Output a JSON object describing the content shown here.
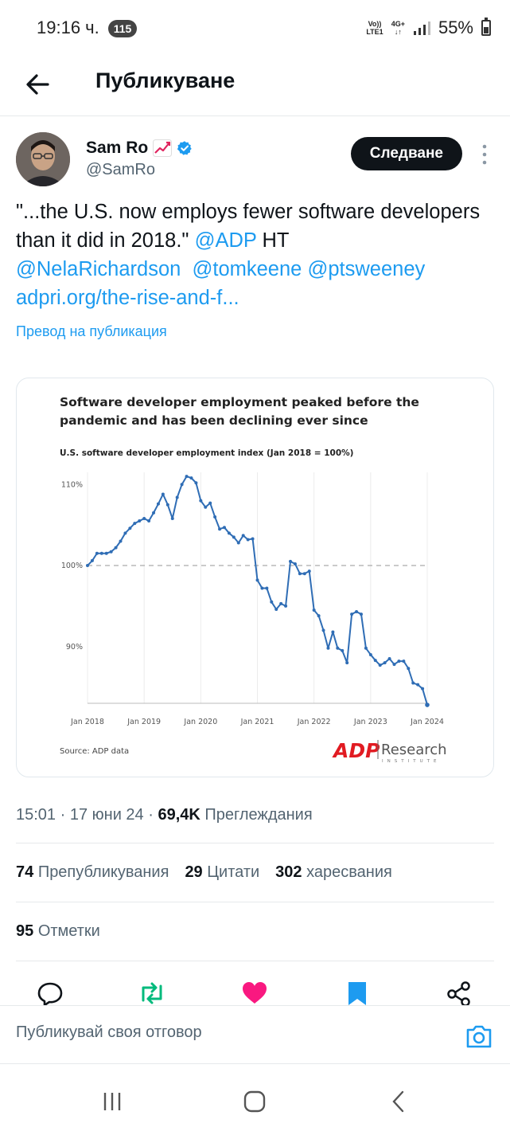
{
  "status_bar": {
    "time": "19:16 ч.",
    "notification_count": "115",
    "volte": "Vo)) LTE1",
    "network": "4G+",
    "battery": "55%"
  },
  "header": {
    "title": "Публикуване",
    "back_icon": "arrow-left-icon"
  },
  "author": {
    "name": "Sam Ro",
    "handle": "@SamRo",
    "emoji": "chart-increasing-icon",
    "verified_color": "#1d9bf0",
    "follow_label": "Следване"
  },
  "tweet": {
    "quote": "\"...the U.S. now employs fewer software developers than it did in 2018.\"",
    "mention_adp": "@ADP",
    "ht": "HT",
    "mention_nela": "@NelaRichardson",
    "mention_keene": "@tomkeene",
    "mention_pts": "@ptsweeney",
    "link": "adpri.org/the-rise-and-f...",
    "translate_label": "Превод на публикация"
  },
  "chart_data": {
    "type": "line",
    "title": "Software developer employment peaked before the pandemic and has been declining ever since",
    "title_line1": "Software developer employment peaked before the",
    "title_line2": "pandemic and has been declining ever since",
    "subtitle": "U.S. software developer employment index (Jan 2018 = 100%)",
    "source": "Source: ADP data",
    "logo_text": "ADP",
    "logo_research": "Research",
    "logo_institute": "INSTITUTE",
    "y_ticks": [
      "110%",
      "100%",
      "90%"
    ],
    "y_tick_values": [
      110,
      100,
      90
    ],
    "x_ticks": [
      "Jan 2018",
      "Jan 2019",
      "Jan 2020",
      "Jan 2021",
      "Jan 2022",
      "Jan 2023",
      "Jan 2024"
    ],
    "ylim": [
      83,
      111.5
    ],
    "reference_line": 100,
    "line_color": "#2f6db5",
    "series": [
      {
        "values": [
          100.0,
          100.6,
          101.5,
          101.5,
          101.5,
          101.7,
          102.2,
          103.0,
          104.0,
          104.6,
          105.2,
          105.5,
          105.8,
          105.5,
          106.5,
          107.6,
          108.8,
          107.5,
          105.8,
          108.4,
          110.0,
          111.0,
          110.8,
          110.2,
          108.0,
          107.2,
          107.7,
          106.0,
          104.5,
          104.7,
          104.0,
          103.5,
          102.8,
          103.7,
          103.2,
          103.3,
          98.2,
          97.2,
          97.2,
          95.5,
          94.6,
          95.3,
          95.0,
          100.5,
          100.2,
          99.0,
          99.0,
          99.3,
          94.5,
          93.8,
          92.0,
          89.8,
          91.8,
          89.8,
          89.5,
          88.0,
          94.0,
          94.3,
          94.0,
          89.8,
          89.0,
          88.3,
          87.7,
          88.0,
          88.5,
          87.8,
          88.2,
          88.2,
          87.3,
          85.5,
          85.3,
          84.8,
          82.8
        ]
      }
    ]
  },
  "meta": {
    "time": "15:01",
    "date": "17 юни 24",
    "views_count": "69,4K",
    "views_label": "Преглеждания"
  },
  "stats": {
    "reposts_count": "74",
    "reposts_label": "Препубликувания",
    "quotes_count": "29",
    "quotes_label": "Цитати",
    "likes_count": "302",
    "likes_label": "харесвания",
    "bookmarks_count": "95",
    "bookmarks_label": "Отметки"
  },
  "actions": {
    "reply_icon": "reply-icon",
    "repost_icon": "repost-icon",
    "like_icon": "heart-icon",
    "bookmark_icon": "bookmark-icon",
    "share_icon": "share-icon",
    "repost_color": "#00ba7c",
    "like_color": "#f91880",
    "bookmark_color": "#1d9bf0"
  },
  "reply": {
    "placeholder": "Публикувай своя отговор",
    "camera_icon": "camera-icon"
  },
  "nav": {
    "recents_icon": "recents-icon",
    "home_icon": "home-icon",
    "back_icon": "back-chevron-icon"
  }
}
